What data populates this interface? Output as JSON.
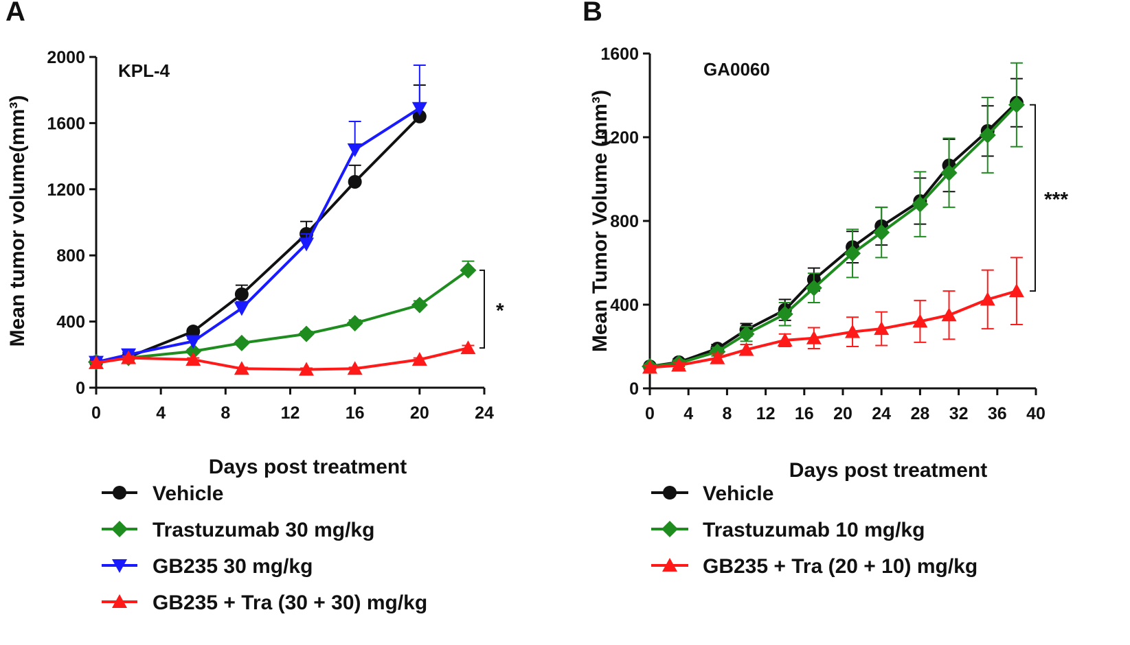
{
  "colors": {
    "vehicle": "#111111",
    "trastuzumab": "#1e8c1e",
    "gb235": "#1a1aff",
    "combo": "#ff1a1a"
  },
  "chart_data": [
    {
      "panel": "A",
      "type": "line",
      "title": "KPL-4",
      "xlabel": "Days post treatment",
      "ylabel": "Mean tumor volume(mm³)",
      "xlim": [
        0,
        24
      ],
      "ylim": [
        0,
        2000
      ],
      "xticks": [
        "0",
        "4",
        "8",
        "12",
        "16",
        "20",
        "24"
      ],
      "yticks": [
        "0",
        "400",
        "800",
        "1200",
        "1600",
        "2000"
      ],
      "series": [
        {
          "name": "Vehicle",
          "color_key": "vehicle",
          "marker": "circle",
          "x": [
            0,
            2,
            6,
            9,
            13,
            16,
            20
          ],
          "y": [
            155,
            185,
            340,
            565,
            930,
            1245,
            1640
          ],
          "err": [
            10,
            12,
            15,
            55,
            75,
            100,
            190
          ]
        },
        {
          "name": "Trastuzumab 30 mg/kg",
          "color_key": "trastuzumab",
          "marker": "diamond",
          "x": [
            0,
            2,
            6,
            9,
            13,
            16,
            20,
            23
          ],
          "y": [
            155,
            180,
            220,
            270,
            325,
            390,
            500,
            710
          ],
          "err": [
            8,
            10,
            12,
            15,
            15,
            20,
            25,
            55
          ]
        },
        {
          "name": "GB235 30 mg/kg",
          "color_key": "gb235",
          "marker": "triangle-down",
          "x": [
            0,
            2,
            6,
            9,
            13,
            16,
            20
          ],
          "y": [
            155,
            200,
            280,
            480,
            870,
            1440,
            1690
          ],
          "err": [
            8,
            12,
            15,
            40,
            60,
            170,
            260
          ]
        },
        {
          "name": "GB235 + Tra (30 + 30) mg/kg",
          "color_key": "combo",
          "marker": "triangle-up",
          "x": [
            0,
            2,
            6,
            9,
            13,
            16,
            20,
            23
          ],
          "y": [
            150,
            180,
            170,
            115,
            110,
            115,
            170,
            240
          ],
          "err": [
            8,
            10,
            10,
            8,
            8,
            8,
            10,
            15
          ]
        }
      ],
      "significance": {
        "label": "*",
        "from": 240,
        "to": 710
      }
    },
    {
      "panel": "B",
      "type": "line",
      "title": "GA0060",
      "xlabel": "Days post treatment",
      "ylabel": "Mean Tumor Volume (mm³)",
      "xlim": [
        0,
        40
      ],
      "ylim": [
        0,
        1600
      ],
      "xticks": [
        "0",
        "4",
        "8",
        "12",
        "16",
        "20",
        "24",
        "28",
        "32",
        "36",
        "40"
      ],
      "yticks": [
        "0",
        "400",
        "800",
        "1200",
        "1600"
      ],
      "series": [
        {
          "name": "Vehicle",
          "color_key": "vehicle",
          "marker": "circle",
          "x": [
            0,
            3,
            7,
            10,
            14,
            17,
            21,
            24,
            28,
            31,
            35,
            38
          ],
          "y": [
            105,
            125,
            190,
            280,
            375,
            520,
            675,
            775,
            895,
            1065,
            1230,
            1365
          ],
          "err": [
            10,
            15,
            20,
            30,
            50,
            55,
            75,
            90,
            110,
            125,
            120,
            115
          ]
        },
        {
          "name": "Trastuzumab 10 mg/kg",
          "color_key": "trastuzumab",
          "marker": "diamond",
          "x": [
            0,
            3,
            7,
            10,
            14,
            17,
            21,
            24,
            28,
            31,
            35,
            38
          ],
          "y": [
            105,
            120,
            175,
            260,
            355,
            480,
            645,
            745,
            880,
            1030,
            1210,
            1355
          ],
          "err": [
            10,
            15,
            20,
            35,
            55,
            70,
            115,
            120,
            155,
            165,
            180,
            200
          ]
        },
        {
          "name": "GB235 + Tra (20 + 10) mg/kg",
          "color_key": "combo",
          "marker": "triangle-up",
          "x": [
            0,
            3,
            7,
            10,
            14,
            17,
            21,
            24,
            28,
            31,
            35,
            38
          ],
          "y": [
            100,
            110,
            145,
            185,
            230,
            240,
            270,
            285,
            320,
            350,
            425,
            465
          ],
          "err": [
            10,
            15,
            20,
            25,
            30,
            50,
            70,
            80,
            100,
            115,
            140,
            160
          ]
        }
      ],
      "significance": {
        "label": "***",
        "from": 465,
        "to": 1355
      }
    }
  ]
}
